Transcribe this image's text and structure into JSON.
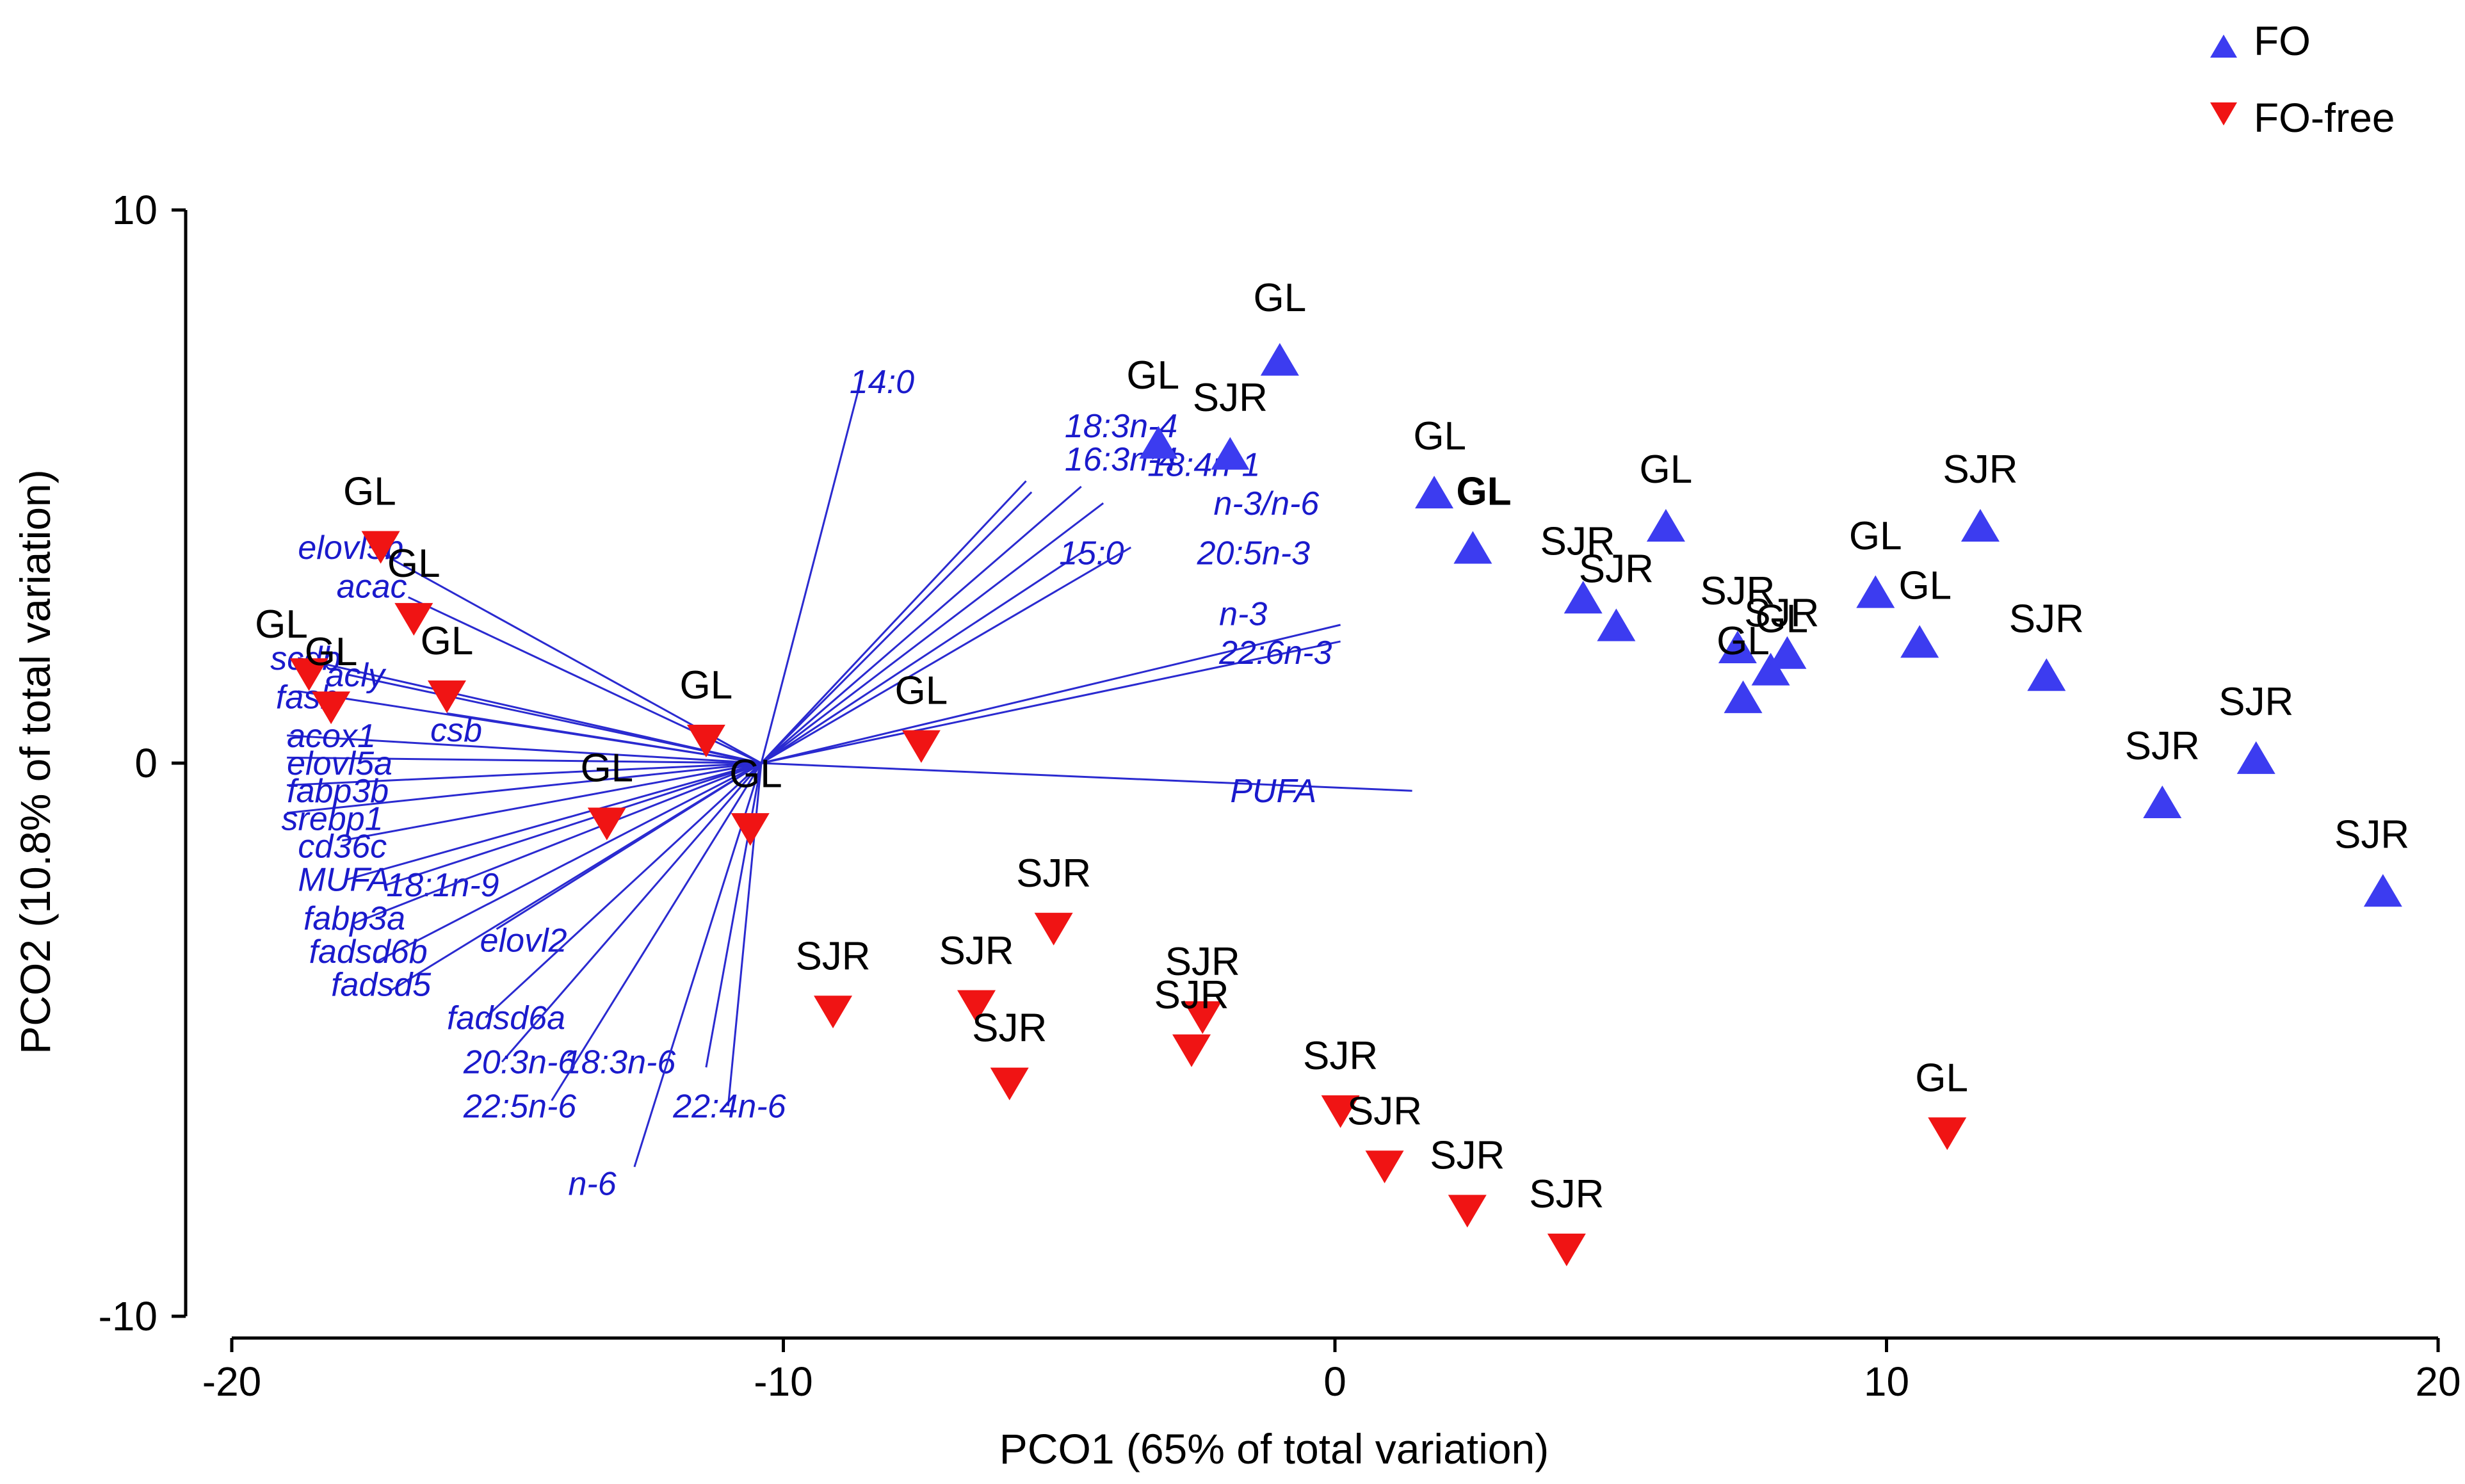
{
  "chart_data": {
    "type": "scatter",
    "title": "",
    "xlabel": "PCO1 (65% of total variation)",
    "ylabel": "PCO2 (10.8% of total variation)",
    "xlim": [
      -20,
      20
    ],
    "ylim": [
      -10,
      10
    ],
    "xticks": [
      -20,
      -10,
      0,
      10,
      20
    ],
    "yticks": [
      -10,
      0,
      10
    ],
    "xtick_labels": [
      "-20",
      "-10",
      "0",
      "10",
      "20"
    ],
    "ytick_labels": [
      "-10",
      "0",
      "10"
    ],
    "legend": {
      "position": "top-right",
      "entries": [
        {
          "name": "FO",
          "marker": "triangle-up",
          "color": "#3c3cf0"
        },
        {
          "name": "FO-free",
          "marker": "triangle-down",
          "color": "#f01414"
        }
      ]
    },
    "series": [
      {
        "name": "FO",
        "marker": "triangle-up",
        "color": "#3c3cf0",
        "points": [
          {
            "x": -1.0,
            "y": 7.3,
            "label": "GL",
            "dx": 0,
            "dy": 1.1
          },
          {
            "x": -3.2,
            "y": 5.8,
            "label": "GL",
            "dx": -0.1,
            "dy": 1.2
          },
          {
            "x": -1.9,
            "y": 5.6,
            "label": "SJR",
            "dx": 0,
            "dy": 1.0
          },
          {
            "x": 1.8,
            "y": 4.9,
            "label": "GL",
            "dx": 0.1,
            "dy": 1.0
          },
          {
            "x": 2.5,
            "y": 3.9,
            "label": "GL",
            "dx": 0.2,
            "dy": 1.0,
            "bold": true
          },
          {
            "x": 6.0,
            "y": 4.3,
            "label": "GL",
            "dx": 0,
            "dy": 1.0
          },
          {
            "x": 4.5,
            "y": 3.0,
            "label": "SJR",
            "dx": -0.1,
            "dy": 1.0
          },
          {
            "x": 5.1,
            "y": 2.5,
            "label": "SJR",
            "dx": 0,
            "dy": 1.0
          },
          {
            "x": 7.3,
            "y": 2.1,
            "label": "SJR",
            "dx": 0,
            "dy": 1.0
          },
          {
            "x": 7.9,
            "y": 1.7,
            "label": "SJR",
            "dx": 0.2,
            "dy": 1.0
          },
          {
            "x": 8.2,
            "y": 2.0,
            "label": "GL",
            "dx": -0.1,
            "dy": 0.6
          },
          {
            "x": 7.4,
            "y": 1.2,
            "label": "GL",
            "dx": 0,
            "dy": 1.0
          },
          {
            "x": 9.8,
            "y": 3.1,
            "label": "GL",
            "dx": 0,
            "dy": 1.0
          },
          {
            "x": 10.6,
            "y": 2.2,
            "label": "GL",
            "dx": 0.1,
            "dy": 1.0
          },
          {
            "x": 11.7,
            "y": 4.3,
            "label": "SJR",
            "dx": 0,
            "dy": 1.0
          },
          {
            "x": 12.9,
            "y": 1.6,
            "label": "SJR",
            "dx": 0,
            "dy": 1.0
          },
          {
            "x": 15.0,
            "y": -0.7,
            "label": "SJR",
            "dx": 0,
            "dy": 1.0
          },
          {
            "x": 16.7,
            "y": 0.1,
            "label": "SJR",
            "dx": 0,
            "dy": 1.0
          },
          {
            "x": 19.0,
            "y": -2.3,
            "label": "SJR",
            "dx": -0.2,
            "dy": 1.0
          }
        ]
      },
      {
        "name": "FO-free",
        "marker": "triangle-down",
        "color": "#f01414",
        "points": [
          {
            "x": -17.3,
            "y": 3.9,
            "label": "GL",
            "dx": -0.2,
            "dy": 1.0
          },
          {
            "x": -16.7,
            "y": 2.6,
            "label": "GL",
            "dx": 0,
            "dy": 1.0
          },
          {
            "x": -18.6,
            "y": 1.6,
            "label": "GL",
            "dx": -0.5,
            "dy": 0.9
          },
          {
            "x": -18.2,
            "y": 1.0,
            "label": "GL",
            "dx": 0,
            "dy": 1.0
          },
          {
            "x": -16.1,
            "y": 1.2,
            "label": "GL",
            "dx": 0,
            "dy": 1.0
          },
          {
            "x": -11.4,
            "y": 0.4,
            "label": "GL",
            "dx": 0,
            "dy": 1.0
          },
          {
            "x": -7.5,
            "y": 0.3,
            "label": "GL",
            "dx": 0,
            "dy": 1.0
          },
          {
            "x": -13.2,
            "y": -1.1,
            "label": "GL",
            "dx": 0,
            "dy": 1.0
          },
          {
            "x": -10.6,
            "y": -1.2,
            "label": "GL",
            "dx": 0.1,
            "dy": 1.0
          },
          {
            "x": -9.1,
            "y": -4.5,
            "label": "SJR",
            "dx": 0,
            "dy": 1.0
          },
          {
            "x": -6.5,
            "y": -4.4,
            "label": "SJR",
            "dx": 0,
            "dy": 1.0
          },
          {
            "x": -5.1,
            "y": -3.0,
            "label": "SJR",
            "dx": 0,
            "dy": 1.0
          },
          {
            "x": -5.9,
            "y": -5.8,
            "label": "SJR",
            "dx": 0,
            "dy": 1.0
          },
          {
            "x": -2.4,
            "y": -4.6,
            "label": "SJR",
            "dx": 0,
            "dy": 1.0
          },
          {
            "x": -2.6,
            "y": -5.2,
            "label": "SJR",
            "dx": 0,
            "dy": 1.0
          },
          {
            "x": 0.1,
            "y": -6.3,
            "label": "SJR",
            "dx": 0,
            "dy": 1.0
          },
          {
            "x": 0.9,
            "y": -7.3,
            "label": "SJR",
            "dx": 0,
            "dy": 1.0
          },
          {
            "x": 2.4,
            "y": -8.1,
            "label": "SJR",
            "dx": 0,
            "dy": 1.0
          },
          {
            "x": 4.2,
            "y": -8.8,
            "label": "SJR",
            "dx": 0,
            "dy": 1.0
          },
          {
            "x": 11.1,
            "y": -6.7,
            "label": "GL",
            "dx": -0.1,
            "dy": 1.0
          }
        ]
      }
    ],
    "vector_origin": {
      "x": -10.4,
      "y": 0.0
    },
    "vectors": [
      {
        "label": "14:0",
        "x": -8.6,
        "y": 6.9,
        "lx": -8.8,
        "ly": 6.9
      },
      {
        "label": "18:3n-4",
        "x": -5.6,
        "y": 5.1,
        "lx": -4.9,
        "ly": 6.1
      },
      {
        "label": "16:3n-4",
        "x": -5.5,
        "y": 4.9,
        "lx": -4.9,
        "ly": 5.5
      },
      {
        "label": "18:4n-1",
        "x": -4.6,
        "y": 5.0,
        "lx": -3.4,
        "ly": 5.4
      },
      {
        "label": "n-3/n-6",
        "x": -4.2,
        "y": 4.7,
        "lx": -2.2,
        "ly": 4.7
      },
      {
        "label": "15:0",
        "x": -4.6,
        "y": 3.8,
        "lx": -5.0,
        "ly": 3.8
      },
      {
        "label": "20:5n-3",
        "x": -3.7,
        "y": 3.9,
        "lx": -2.5,
        "ly": 3.8
      },
      {
        "label": "n-3",
        "x": 0.1,
        "y": 2.5,
        "lx": -2.1,
        "ly": 2.7
      },
      {
        "label": "22:6n-3",
        "x": 0.1,
        "y": 2.2,
        "lx": -2.1,
        "ly": 2.0
      },
      {
        "label": "PUFA",
        "x": 1.4,
        "y": -0.5,
        "lx": -1.9,
        "ly": -0.5
      },
      {
        "label": "elovl5b",
        "x": -17.3,
        "y": 3.8,
        "lx": -18.8,
        "ly": 3.9
      },
      {
        "label": "acac",
        "x": -16.8,
        "y": 3.0,
        "lx": -18.1,
        "ly": 3.2
      },
      {
        "label": "scdb",
        "x": -18.8,
        "y": 1.9,
        "lx": -19.3,
        "ly": 1.9
      },
      {
        "label": "acly",
        "x": -17.9,
        "y": 1.6,
        "lx": -18.3,
        "ly": 1.6
      },
      {
        "label": "fasb",
        "x": -18.8,
        "y": 1.3,
        "lx": -19.2,
        "ly": 1.2
      },
      {
        "label": "csb",
        "x": -16.1,
        "y": 0.9,
        "lx": -16.4,
        "ly": 0.6
      },
      {
        "label": "acox1",
        "x": -19.0,
        "y": 0.5,
        "lx": -19.0,
        "ly": 0.5
      },
      {
        "label": "elovl5a",
        "x": -19.0,
        "y": 0.1,
        "lx": -19.0,
        "ly": 0.0
      },
      {
        "label": "fabp3b",
        "x": -19.0,
        "y": -0.4,
        "lx": -19.0,
        "ly": -0.5
      },
      {
        "label": "srebp1",
        "x": -19.0,
        "y": -0.9,
        "lx": -19.1,
        "ly": -1.0
      },
      {
        "label": "cd36c",
        "x": -18.0,
        "y": -1.4,
        "lx": -18.8,
        "ly": -1.5
      },
      {
        "label": "MUFA",
        "x": -17.9,
        "y": -2.1,
        "lx": -18.8,
        "ly": -2.1
      },
      {
        "label": "18:1n-9",
        "x": -17.2,
        "y": -2.2,
        "lx": -17.2,
        "ly": -2.2
      },
      {
        "label": "fabp3a",
        "x": -17.8,
        "y": -2.9,
        "lx": -18.7,
        "ly": -2.8
      },
      {
        "label": "fadsd6b",
        "x": -17.4,
        "y": -3.6,
        "lx": -18.6,
        "ly": -3.4
      },
      {
        "label": "elovl2",
        "x": -15.2,
        "y": -3.0,
        "lx": -15.5,
        "ly": -3.2
      },
      {
        "label": "fadsd5",
        "x": -17.1,
        "y": -4.1,
        "lx": -18.2,
        "ly": -4.0
      },
      {
        "label": "fadsd6a",
        "x": -15.4,
        "y": -4.6,
        "lx": -16.1,
        "ly": -4.6
      },
      {
        "label": "20:3n-6",
        "x": -15.1,
        "y": -5.4,
        "lx": -15.8,
        "ly": -5.4
      },
      {
        "label": "18:3n-6",
        "x": -11.4,
        "y": -5.5,
        "lx": -14.0,
        "ly": -5.4
      },
      {
        "label": "22:5n-6",
        "x": -14.2,
        "y": -6.1,
        "lx": -15.8,
        "ly": -6.2
      },
      {
        "label": "22:4n-6",
        "x": -11.0,
        "y": -6.2,
        "lx": -12.0,
        "ly": -6.2
      },
      {
        "label": "n-6",
        "x": -12.7,
        "y": -7.3,
        "lx": -13.9,
        "ly": -7.6
      }
    ]
  }
}
